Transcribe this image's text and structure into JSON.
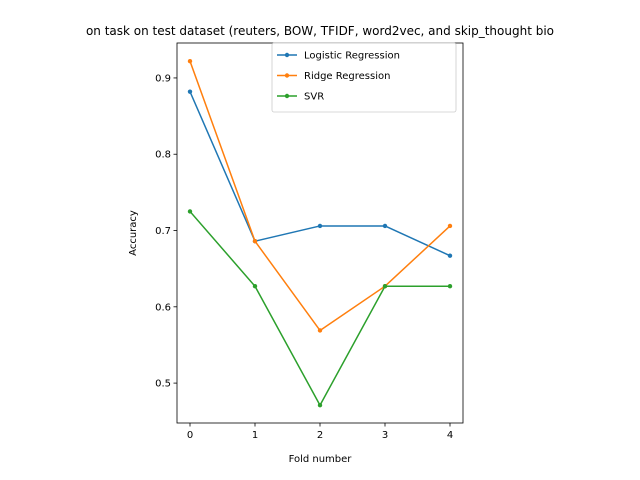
{
  "chart_data": {
    "type": "line",
    "title": "on task on test dataset (reuters, BOW, TFIDF, word2vec, and skip_thought bio",
    "xlabel": "Fold number",
    "ylabel": "Accuracy",
    "x": [
      0,
      1,
      2,
      3,
      4
    ],
    "xlim": [
      -0.2,
      4.2
    ],
    "ylim": [
      0.4477,
      0.9458
    ],
    "xticks": [
      "0",
      "1",
      "2",
      "3",
      "4"
    ],
    "yticks": [
      0.5,
      0.6,
      0.7,
      0.8,
      0.9
    ],
    "ytick_labels": [
      "0.5",
      "0.6",
      "0.7",
      "0.8",
      "0.9"
    ],
    "grid": false,
    "legend_position": "top-right",
    "series": [
      {
        "name": "Logistic Regression",
        "color": "#1f77b4",
        "values": [
          0.882,
          0.686,
          0.706,
          0.706,
          0.667
        ]
      },
      {
        "name": "Ridge Regression",
        "color": "#ff7f0e",
        "values": [
          0.922,
          0.686,
          0.569,
          0.627,
          0.706
        ]
      },
      {
        "name": "SVR",
        "color": "#2ca02c",
        "values": [
          0.725,
          0.627,
          0.471,
          0.627,
          0.627
        ]
      }
    ]
  }
}
